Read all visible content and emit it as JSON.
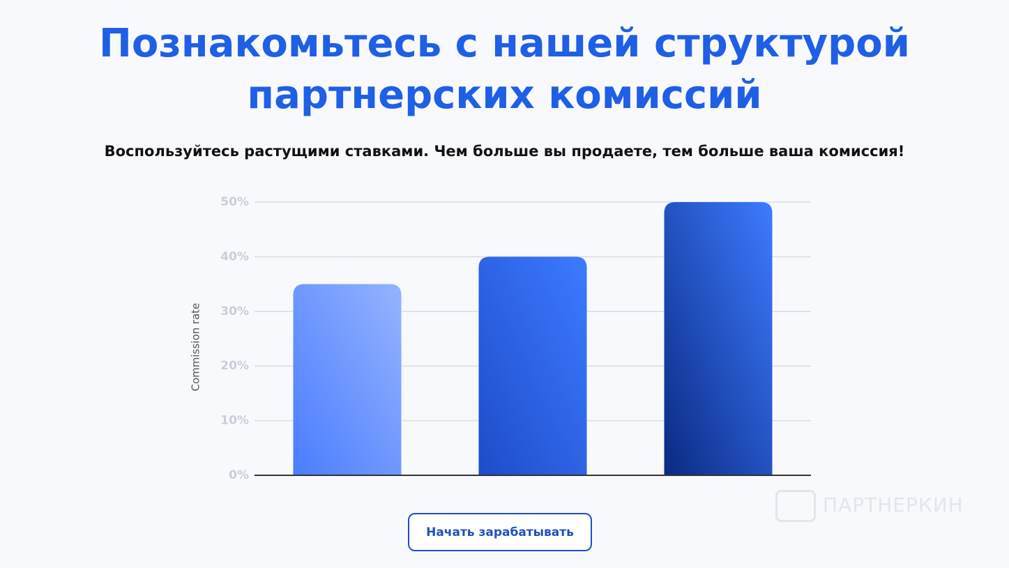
{
  "header": {
    "title": "Познакомьтесь с нашей структурой партнерских комиссий",
    "subtitle": "Воспользуйтесь растущими ставками. Чем больше вы продаете, тем больше ваша комиссия!"
  },
  "button": "Начать зарабатывать",
  "watermark": "ПАРТНЕРКИН",
  "chart_data": {
    "type": "bar",
    "y_label": "Commission rate",
    "categories": [
      null,
      null,
      null
    ],
    "values": [
      35,
      40,
      50
    ],
    "colors": [
      [
        "#4a7cff",
        "#94b4ff"
      ],
      [
        "#1d4cc9",
        "#3d7bff"
      ],
      [
        "#0a2a82",
        "#3d7bff"
      ]
    ],
    "ylim": [
      0,
      50
    ],
    "yticks": [
      {
        "value": 0,
        "label": "0%"
      },
      {
        "value": 10,
        "label": "10%"
      },
      {
        "value": 20,
        "label": "20%"
      },
      {
        "value": 30,
        "label": "30%"
      },
      {
        "value": 40,
        "label": "40%"
      },
      {
        "value": 50,
        "label": "50%"
      }
    ],
    "grid": true
  }
}
